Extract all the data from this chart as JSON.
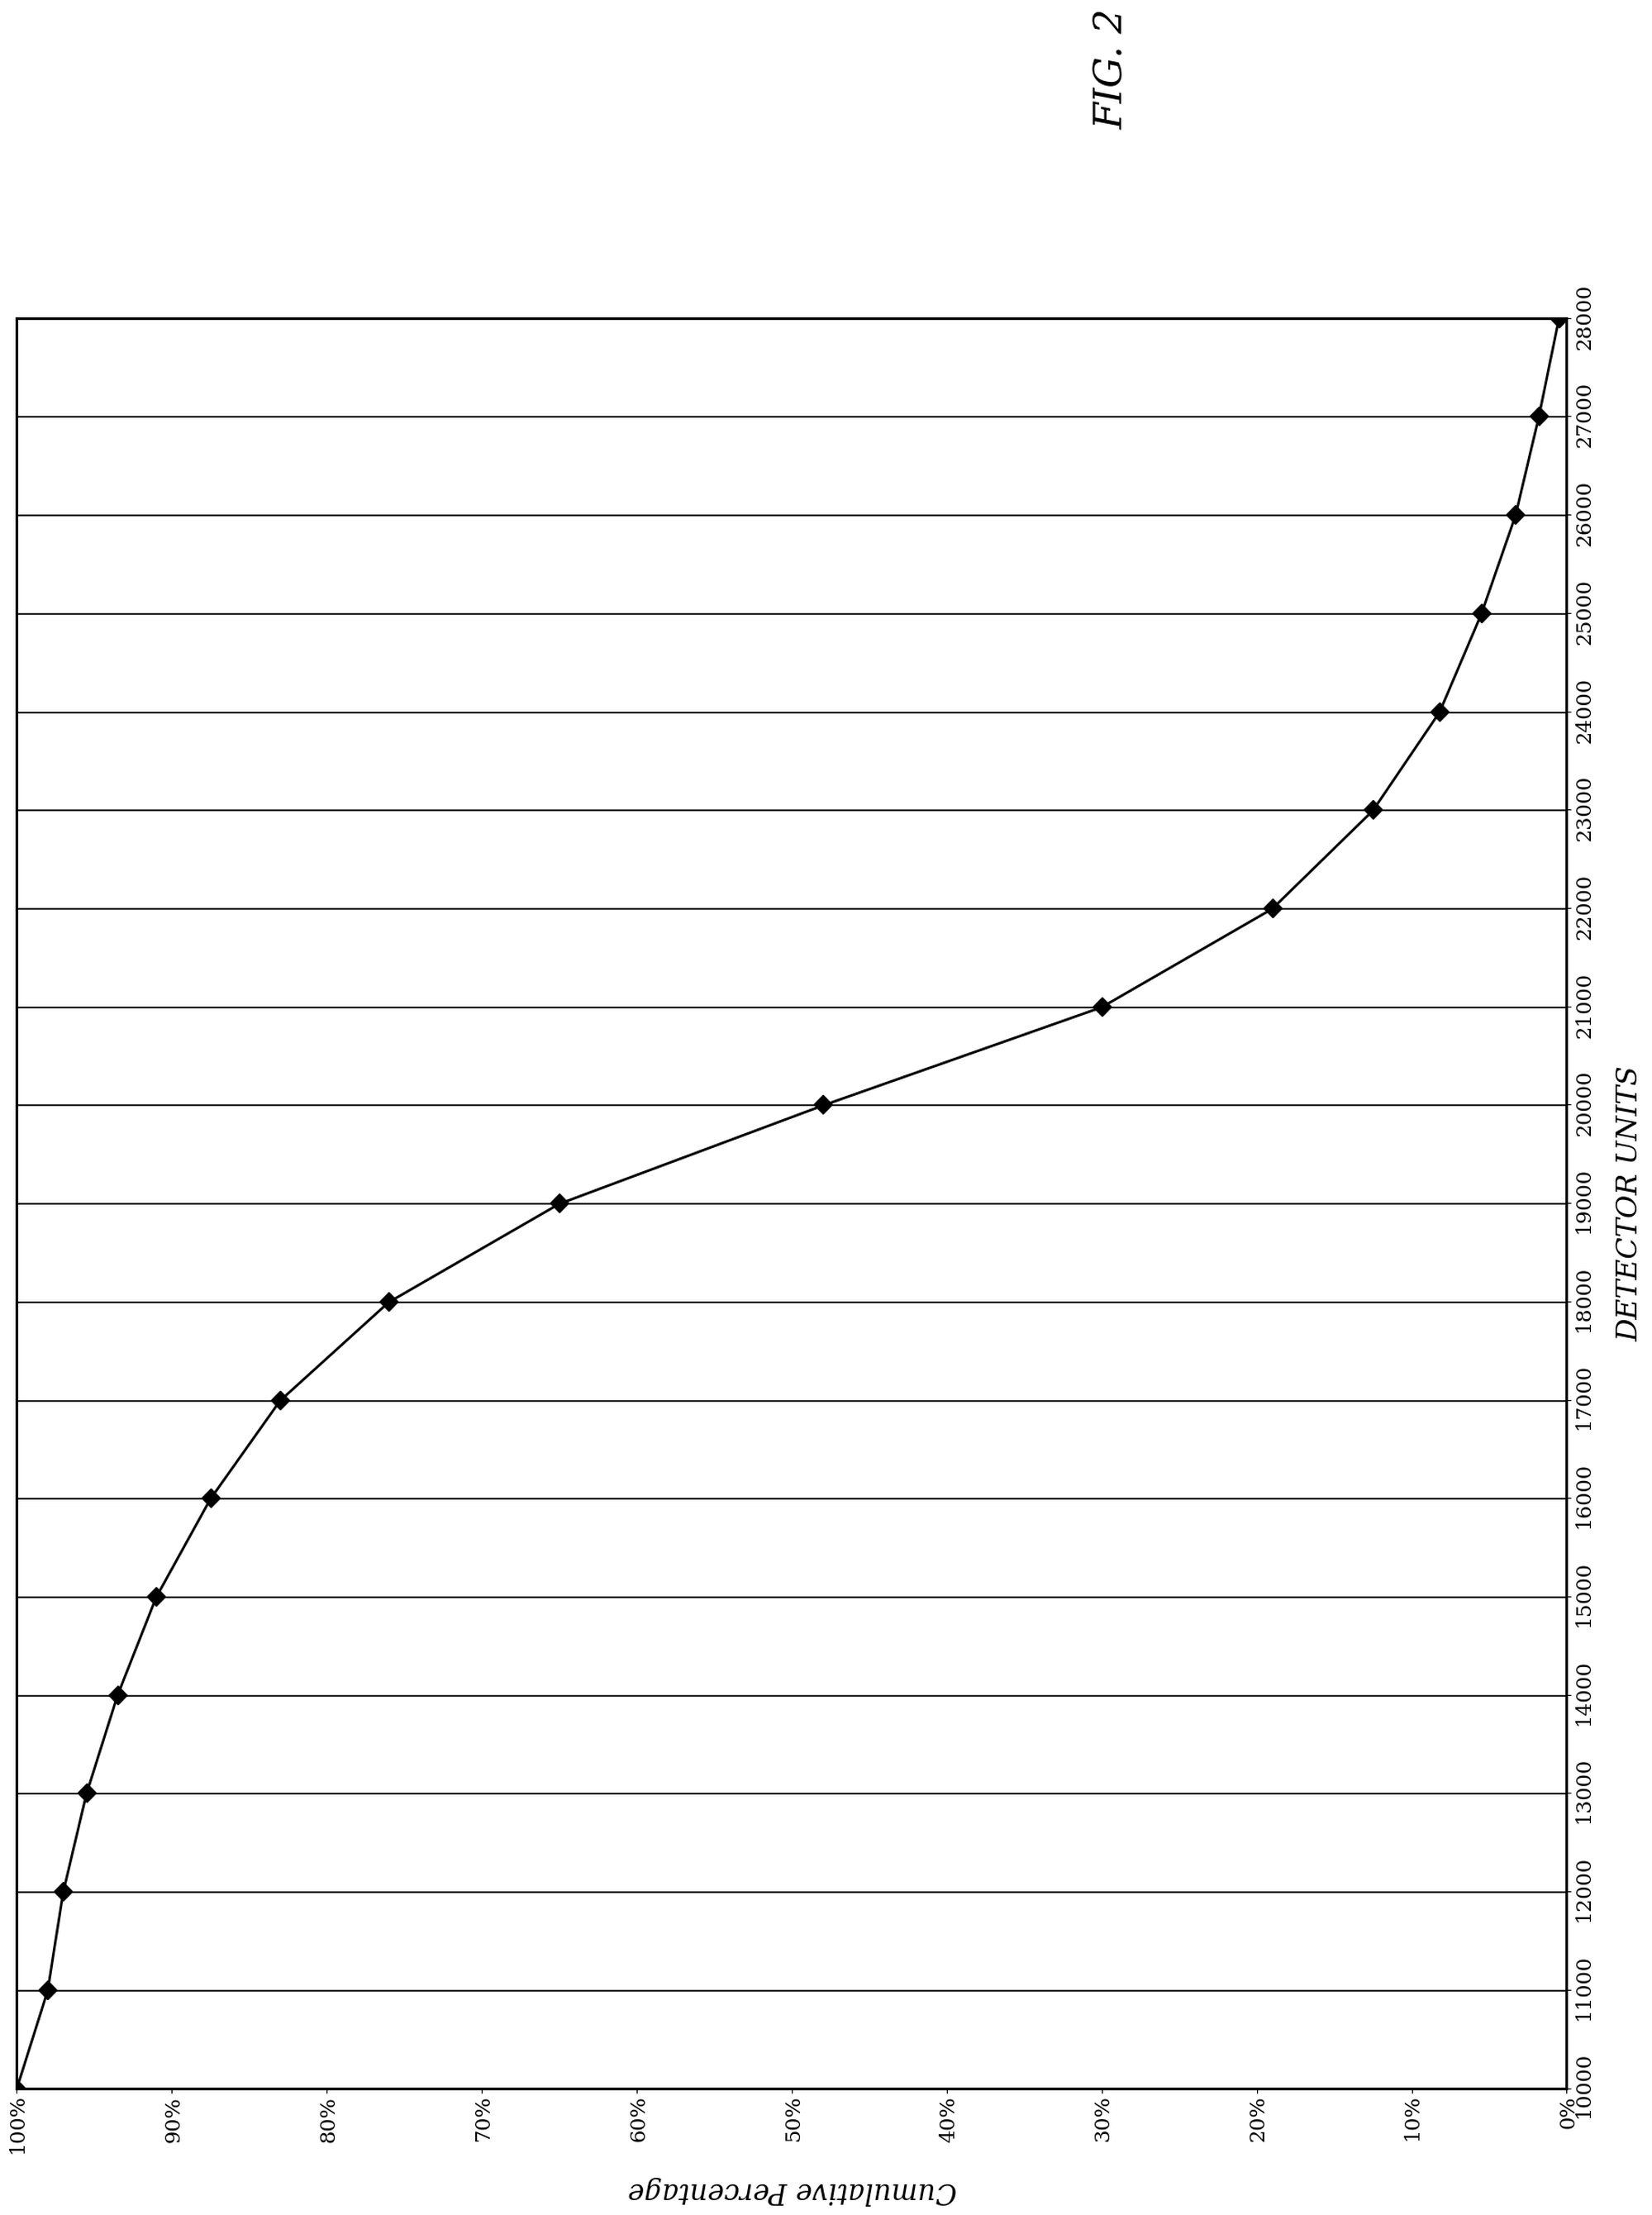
{
  "detector_units": [
    10000,
    11000,
    12000,
    13000,
    14000,
    15000,
    16000,
    17000,
    18000,
    19000,
    20000,
    21000,
    22000,
    23000,
    24000,
    25000,
    26000,
    27000,
    28000
  ],
  "cum_pct": [
    1.0,
    0.98,
    0.97,
    0.955,
    0.935,
    0.91,
    0.875,
    0.83,
    0.76,
    0.65,
    0.48,
    0.3,
    0.19,
    0.125,
    0.082,
    0.055,
    0.033,
    0.018,
    0.005
  ],
  "x_label": "DETECTOR UNITS",
  "y_label": "Cumulative Percentage",
  "fig_label": "FIG. 2",
  "line_color": "#000000",
  "marker_color": "#000000",
  "marker_size": 10,
  "line_width": 2.0,
  "background_color": "#ffffff",
  "grid_color": "#000000",
  "axis_label_fontsize": 22,
  "tick_fontsize": 16,
  "fig_label_fontsize": 30
}
